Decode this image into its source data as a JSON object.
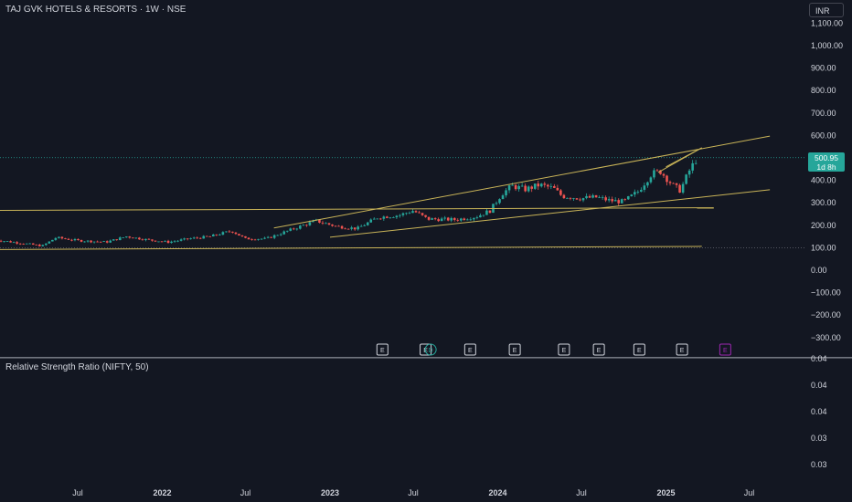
{
  "header": {
    "title": "TAJ GVK HOTELS & RESORTS · 1W · NSE",
    "currency": "INR"
  },
  "last_price": {
    "value": "500.95",
    "countdown": "1d 8h"
  },
  "indicator": {
    "title": "Relative Strength Ratio (NIFTY, 50)",
    "ticks": [
      "0.04",
      "0.04",
      "0.04",
      "0.03",
      "0.03"
    ]
  },
  "events": {
    "earnings_label": "E",
    "dividend_label": "D",
    "earnings_color": "#d1d4dc",
    "dividend_color": "#26a69a",
    "future_color": "#9c27b0"
  },
  "colors": {
    "up": "#26a69a",
    "down": "#ef5350",
    "trendline": "#c9b458",
    "pricebadge": "#26a69a"
  },
  "chart_data": {
    "type": "candlestick",
    "title": "TAJ GVK HOTELS & RESORTS · 1W · NSE",
    "y_axis_labels": [
      "1,100.00",
      "1,000.00",
      "900.00",
      "800.00",
      "700.00",
      "600.00",
      "400.00",
      "300.00",
      "200.00",
      "100.00",
      "0.00",
      "−100.00",
      "−200.00",
      "−300.00"
    ],
    "x_axis_labels": [
      "Jul",
      "2022",
      "Jul",
      "2023",
      "Jul",
      "2024",
      "Jul",
      "2025",
      "Jul"
    ],
    "bold_x_labels": [
      "2022",
      "2023",
      "2024",
      "2025"
    ],
    "y_range": [
      -330,
      1140
    ],
    "current_price": 500.95,
    "price_path": [
      [
        "2021-01-01",
        135
      ],
      [
        "2021-03-01",
        120
      ],
      [
        "2021-04-15",
        108
      ],
      [
        "2021-05-15",
        145
      ],
      [
        "2021-07-01",
        132
      ],
      [
        "2021-09-01",
        125
      ],
      [
        "2021-10-15",
        150
      ],
      [
        "2021-12-01",
        135
      ],
      [
        "2022-01-15",
        125
      ],
      [
        "2022-03-01",
        140
      ],
      [
        "2022-04-15",
        150
      ],
      [
        "2022-06-01",
        175
      ],
      [
        "2022-07-01",
        140
      ],
      [
        "2022-08-15",
        140
      ],
      [
        "2022-10-01",
        175
      ],
      [
        "2022-12-01",
        220
      ],
      [
        "2023-01-15",
        195
      ],
      [
        "2023-03-01",
        185
      ],
      [
        "2023-04-15",
        235
      ],
      [
        "2023-06-01",
        245
      ],
      [
        "2023-07-01",
        265
      ],
      [
        "2023-08-01",
        228
      ],
      [
        "2023-10-01",
        225
      ],
      [
        "2023-11-15",
        238
      ],
      [
        "2023-12-15",
        265
      ],
      [
        "2024-01-10",
        340
      ],
      [
        "2024-02-01",
        375
      ],
      [
        "2024-03-01",
        360
      ],
      [
        "2024-04-01",
        380
      ],
      [
        "2024-05-01",
        365
      ],
      [
        "2024-05-20",
        330
      ],
      [
        "2024-07-01",
        320
      ],
      [
        "2024-08-01",
        325
      ],
      [
        "2024-09-01",
        310
      ],
      [
        "2024-10-01",
        305
      ],
      [
        "2024-11-01",
        350
      ],
      [
        "2024-12-01",
        430
      ],
      [
        "2024-12-20",
        440
      ],
      [
        "2025-01-15",
        380
      ],
      [
        "2025-02-01",
        355
      ],
      [
        "2025-02-20",
        440
      ],
      [
        "2025-03-10",
        500.95
      ]
    ],
    "trendlines": [
      {
        "from": [
          "2020-12-25",
          266
        ],
        "to": [
          "2025-04-15",
          278
        ]
      },
      {
        "from": [
          "2020-12-25",
          92
        ],
        "to": [
          "2025-03-20",
          106
        ]
      },
      {
        "from": [
          "2022-09-01",
          188
        ],
        "to": [
          "2025-08-15",
          597
        ]
      },
      {
        "from": [
          "2023-01-01",
          147
        ],
        "to": [
          "2025-08-15",
          358
        ]
      },
      {
        "from": [
          "2024-12-15",
          435
        ],
        "to": [
          "2025-03-20",
          545
        ]
      },
      {
        "from": [
          "2025-01-01",
          460
        ],
        "to": [
          "2025-03-20",
          545
        ]
      }
    ],
    "earnings_dates": [
      "2023-04-25",
      "2023-07-28",
      "2023-11-02",
      "2024-02-07",
      "2024-05-24",
      "2024-08-08",
      "2024-11-04",
      "2025-02-05"
    ],
    "dividend_dates": [
      "2023-08-08"
    ],
    "future_earnings_dates": [
      "2025-05-10"
    ],
    "indicator_ticks": [
      "0.04",
      "0.04",
      "0.04",
      "0.03",
      "0.03"
    ]
  }
}
